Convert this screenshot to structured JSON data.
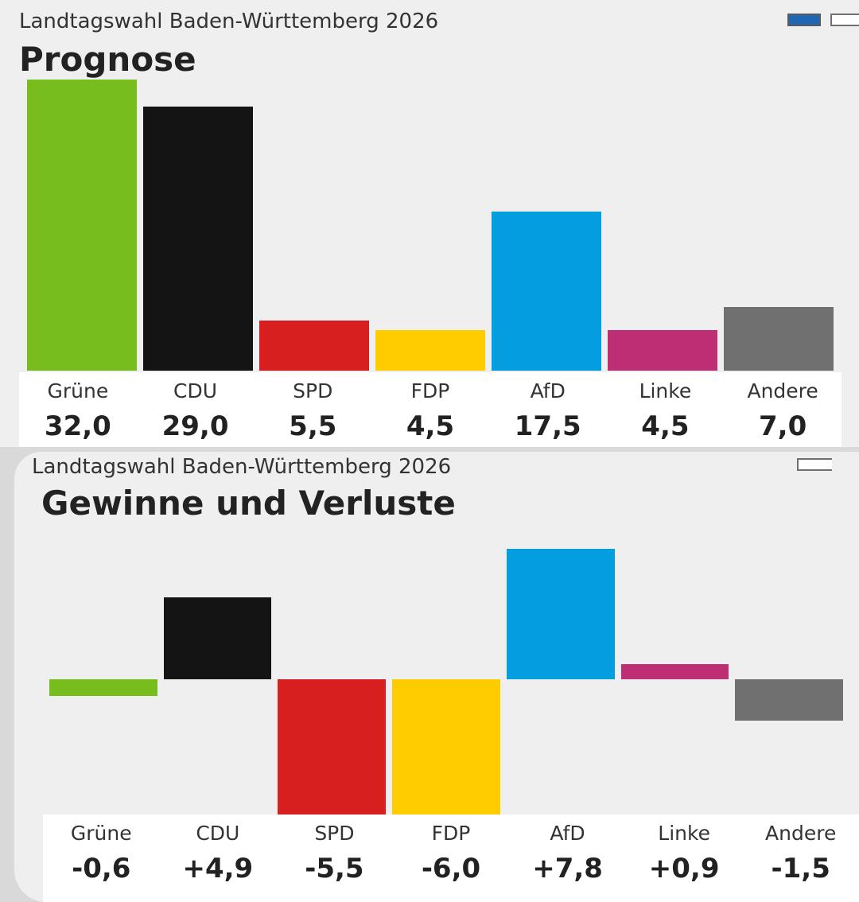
{
  "chart_data": [
    {
      "type": "bar",
      "kicker": "Landtagswahl Baden-Württemberg 2026",
      "title": "Prognose",
      "categories": [
        "Grüne",
        "CDU",
        "SPD",
        "FDP",
        "AfD",
        "Linke",
        "Andere"
      ],
      "values": [
        32.0,
        29.0,
        5.5,
        4.5,
        17.5,
        4.5,
        7.0
      ],
      "value_labels": [
        "32,0",
        "29,0",
        "5,5",
        "4,5",
        "17,5",
        "4,5",
        "7,0"
      ],
      "colors": [
        "#78bd1e",
        "#141414",
        "#d71f1f",
        "#ffcc00",
        "#039de0",
        "#bd2e74",
        "#707070"
      ],
      "ylim": [
        0,
        32
      ]
    },
    {
      "type": "bar",
      "kicker": "Landtagswahl Baden-Württemberg 2026",
      "title": "Gewinne und Verluste",
      "categories": [
        "Grüne",
        "CDU",
        "SPD",
        "FDP",
        "AfD",
        "Linke",
        "Andere"
      ],
      "values": [
        -0.6,
        4.9,
        -5.5,
        -6.0,
        7.8,
        0.9,
        -1.5
      ],
      "value_labels": [
        "-0,6",
        "+4,9",
        "-5,5",
        "-6,0",
        "+7,8",
        "+0,9",
        "-1,5"
      ],
      "colors": [
        "#78bd1e",
        "#141414",
        "#d71f1f",
        "#ffcc00",
        "#039de0",
        "#bd2e74",
        "#707070"
      ],
      "ylim": [
        -6.0,
        7.8
      ]
    }
  ],
  "view_toggle": {
    "active_color": "#2166b3"
  }
}
